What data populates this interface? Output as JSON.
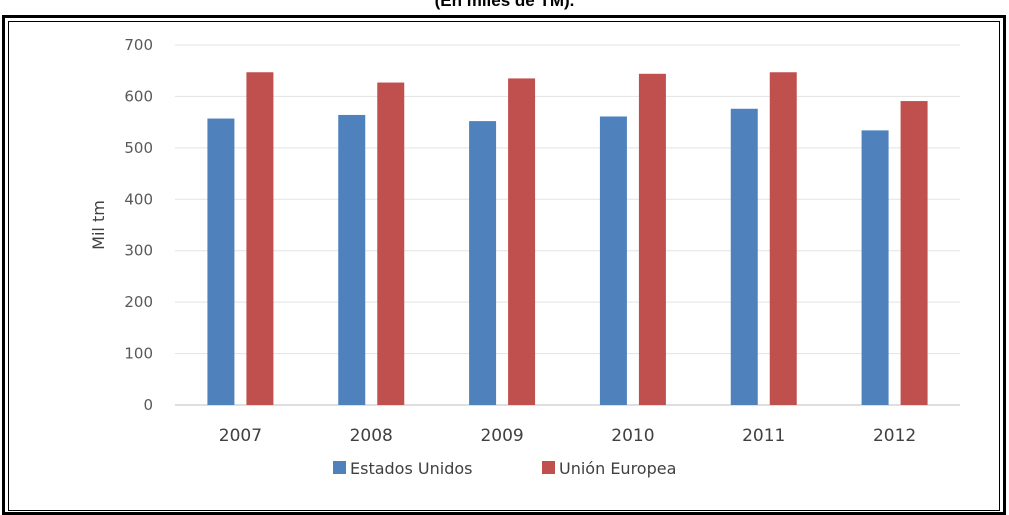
{
  "caption": "(En miles de TM).",
  "chart_data": {
    "type": "bar",
    "title": "",
    "xlabel": "",
    "ylabel": "Mil tm",
    "ylim": [
      0,
      700
    ],
    "yticks": [
      0,
      100,
      200,
      300,
      400,
      500,
      600,
      700
    ],
    "grid": true,
    "legend_position": "bottom",
    "categories": [
      "2007",
      "2008",
      "2009",
      "2010",
      "2011",
      "2012"
    ],
    "series": [
      {
        "name": "Estados Unidos",
        "color": "#4f81bd",
        "values": [
          557,
          564,
          552,
          561,
          576,
          534
        ]
      },
      {
        "name": "Unión Europea",
        "color": "#c0504d",
        "values": [
          647,
          627,
          635,
          644,
          647,
          591
        ]
      }
    ]
  }
}
